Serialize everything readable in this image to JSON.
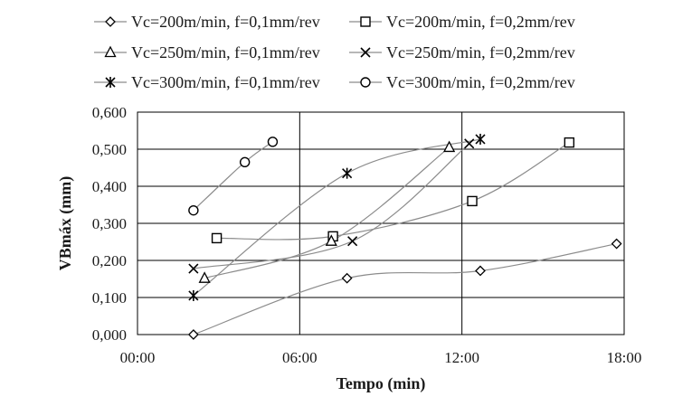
{
  "chart_data": {
    "type": "scatter",
    "title": "",
    "xlabel": "Tempo (min)",
    "ylabel": "VBmáx (mm)",
    "xlim": [
      0,
      18
    ],
    "ylim": [
      0,
      0.6
    ],
    "x_ticks": [
      0,
      6,
      12,
      18
    ],
    "x_tick_labels": [
      "00:00",
      "06:00",
      "12:00",
      "18:00"
    ],
    "y_ticks": [
      0,
      0.1,
      0.2,
      0.3,
      0.4,
      0.5,
      0.6
    ],
    "y_tick_labels": [
      "0,000",
      "0,100",
      "0,200",
      "0,300",
      "0,400",
      "0,500",
      "0,600"
    ],
    "grid": true,
    "legend_position": "top",
    "line_style": "smooth",
    "series": [
      {
        "name": "Vc=200m/min, f=0,1mm/rev",
        "marker": "diamond",
        "points": [
          [
            2.07,
            0.0
          ],
          [
            7.75,
            0.152
          ],
          [
            12.68,
            0.172
          ],
          [
            17.72,
            0.245
          ]
        ]
      },
      {
        "name": "Vc=200m/min, f=0,2mm/rev",
        "marker": "square",
        "points": [
          [
            2.93,
            0.26
          ],
          [
            7.23,
            0.265
          ],
          [
            12.38,
            0.36
          ],
          [
            15.97,
            0.518
          ]
        ]
      },
      {
        "name": "Vc=250m/min, f=0,1mm/rev",
        "marker": "triangle",
        "points": [
          [
            2.48,
            0.152
          ],
          [
            7.17,
            0.252
          ],
          [
            11.53,
            0.505
          ]
        ]
      },
      {
        "name": "Vc=250m/min, f=0,2mm/rev",
        "marker": "x",
        "points": [
          [
            2.07,
            0.178
          ],
          [
            7.95,
            0.252
          ],
          [
            12.27,
            0.515
          ]
        ]
      },
      {
        "name": "Vc=300m/min, f=0,1mm/rev",
        "marker": "asterisk",
        "points": [
          [
            2.07,
            0.105
          ],
          [
            7.75,
            0.435
          ],
          [
            12.68,
            0.527
          ]
        ]
      },
      {
        "name": "Vc=300m/min, f=0,2mm/rev",
        "marker": "circle",
        "points": [
          [
            2.07,
            0.335
          ],
          [
            3.97,
            0.465
          ],
          [
            5.0,
            0.52
          ]
        ]
      }
    ]
  }
}
